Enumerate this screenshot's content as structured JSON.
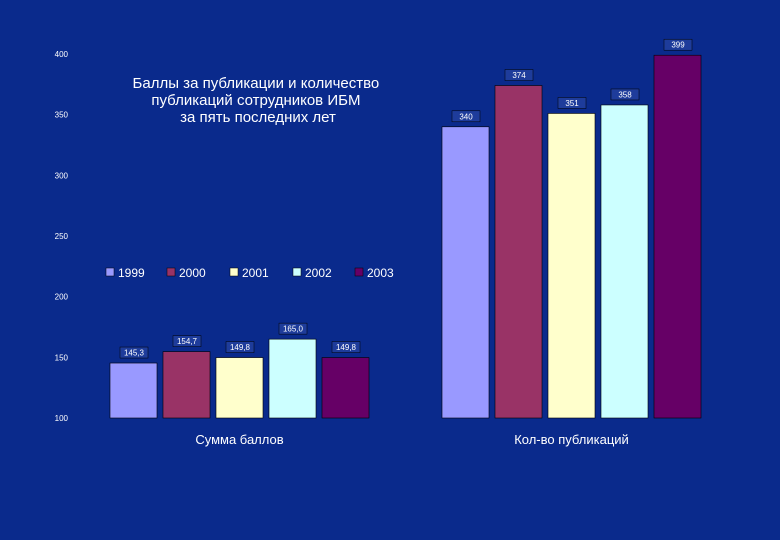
{
  "chart_data": {
    "type": "bar",
    "title_lines": [
      "Баллы за публикации и количество",
      "публикаций сотрудников ИБМ",
      "за пять последних лет"
    ],
    "categories": [
      "Сумма баллов",
      "Кол-во публикаций"
    ],
    "series": [
      {
        "name": "1999",
        "color": "#9999ff",
        "values": [
          145.3,
          340
        ],
        "labels": [
          "145,3",
          "340"
        ]
      },
      {
        "name": "2000",
        "color": "#993366",
        "values": [
          154.7,
          374
        ],
        "labels": [
          "154,7",
          "374"
        ]
      },
      {
        "name": "2001",
        "color": "#ffffcc",
        "values": [
          149.8,
          351
        ],
        "labels": [
          "149,8",
          "351"
        ]
      },
      {
        "name": "2002",
        "color": "#ccffff",
        "values": [
          165.0,
          358
        ],
        "labels": [
          "165,0",
          "358"
        ]
      },
      {
        "name": "2003",
        "color": "#660066",
        "values": [
          149.8,
          399
        ],
        "labels": [
          "149,8",
          "399"
        ]
      }
    ],
    "yticks": [
      100,
      150,
      200,
      250,
      300,
      350,
      400
    ],
    "ylim": [
      100,
      400
    ],
    "grid": false,
    "legend": "center-left",
    "label_box_color": "#1e3c9b",
    "text_color": "#ffffff"
  }
}
